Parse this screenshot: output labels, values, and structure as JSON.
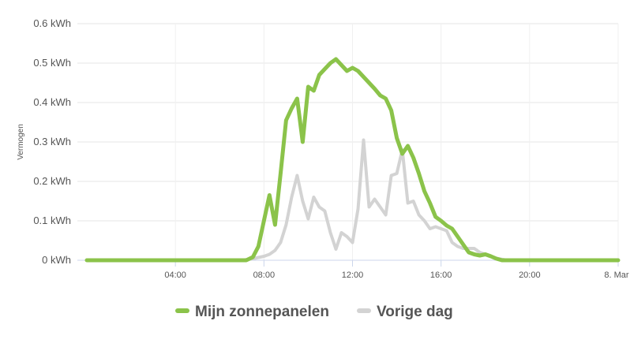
{
  "chart_data": {
    "type": "line",
    "title": "",
    "xlabel": "",
    "ylabel": "Vermogen",
    "unit": "kWh",
    "ylim": [
      0,
      0.6
    ],
    "xlim": [
      0,
      24
    ],
    "y_ticks": [
      {
        "value": 0,
        "label": "0 kWh"
      },
      {
        "value": 0.1,
        "label": "0.1 kWh"
      },
      {
        "value": 0.2,
        "label": "0.2 kWh"
      },
      {
        "value": 0.3,
        "label": "0.3 kWh"
      },
      {
        "value": 0.4,
        "label": "0.4 kWh"
      },
      {
        "value": 0.5,
        "label": "0.5 kWh"
      },
      {
        "value": 0.6,
        "label": "0.6 kWh"
      }
    ],
    "x_ticks": [
      {
        "value": 4,
        "label": "04:00"
      },
      {
        "value": 8,
        "label": "08:00"
      },
      {
        "value": 12,
        "label": "12:00"
      },
      {
        "value": 16,
        "label": "16:00"
      },
      {
        "value": 20,
        "label": "20:00"
      },
      {
        "value": 24,
        "label": "8. Mar"
      }
    ],
    "grid": true,
    "legend_position": "bottom-center",
    "series": [
      {
        "name": "Vorige dag",
        "color": "#d3d3d3",
        "points": [
          [
            0,
            0
          ],
          [
            7,
            0
          ],
          [
            7.5,
            0.004
          ],
          [
            8,
            0.01
          ],
          [
            8.25,
            0.015
          ],
          [
            8.5,
            0.025
          ],
          [
            8.75,
            0.045
          ],
          [
            9,
            0.09
          ],
          [
            9.25,
            0.16
          ],
          [
            9.5,
            0.215
          ],
          [
            9.75,
            0.15
          ],
          [
            10,
            0.105
          ],
          [
            10.25,
            0.16
          ],
          [
            10.5,
            0.135
          ],
          [
            10.75,
            0.125
          ],
          [
            11,
            0.07
          ],
          [
            11.25,
            0.028
          ],
          [
            11.5,
            0.07
          ],
          [
            11.75,
            0.06
          ],
          [
            12,
            0.045
          ],
          [
            12.25,
            0.13
          ],
          [
            12.5,
            0.305
          ],
          [
            12.75,
            0.135
          ],
          [
            13,
            0.155
          ],
          [
            13.25,
            0.135
          ],
          [
            13.5,
            0.115
          ],
          [
            13.75,
            0.215
          ],
          [
            14,
            0.22
          ],
          [
            14.25,
            0.28
          ],
          [
            14.5,
            0.145
          ],
          [
            14.75,
            0.15
          ],
          [
            15,
            0.115
          ],
          [
            15.25,
            0.1
          ],
          [
            15.5,
            0.08
          ],
          [
            15.75,
            0.085
          ],
          [
            16,
            0.08
          ],
          [
            16.25,
            0.075
          ],
          [
            16.5,
            0.045
          ],
          [
            16.75,
            0.035
          ],
          [
            17,
            0.03
          ],
          [
            17.5,
            0.03
          ],
          [
            17.75,
            0.02
          ],
          [
            18,
            0.015
          ],
          [
            18.25,
            0.01
          ],
          [
            18.5,
            0.005
          ],
          [
            19,
            0
          ],
          [
            24,
            0
          ]
        ]
      },
      {
        "name": "Mijn zonnepanelen",
        "color": "#8bc34a",
        "points": [
          [
            0,
            0
          ],
          [
            7.2,
            0
          ],
          [
            7.5,
            0.008
          ],
          [
            7.75,
            0.035
          ],
          [
            8,
            0.1
          ],
          [
            8.25,
            0.165
          ],
          [
            8.5,
            0.09
          ],
          [
            8.75,
            0.22
          ],
          [
            9,
            0.355
          ],
          [
            9.25,
            0.385
          ],
          [
            9.5,
            0.41
          ],
          [
            9.75,
            0.3
          ],
          [
            10,
            0.44
          ],
          [
            10.25,
            0.43
          ],
          [
            10.5,
            0.47
          ],
          [
            10.75,
            0.485
          ],
          [
            11,
            0.5
          ],
          [
            11.25,
            0.51
          ],
          [
            11.5,
            0.495
          ],
          [
            11.75,
            0.48
          ],
          [
            12,
            0.488
          ],
          [
            12.25,
            0.48
          ],
          [
            12.5,
            0.465
          ],
          [
            12.75,
            0.45
          ],
          [
            13,
            0.435
          ],
          [
            13.25,
            0.418
          ],
          [
            13.5,
            0.41
          ],
          [
            13.75,
            0.38
          ],
          [
            14,
            0.31
          ],
          [
            14.25,
            0.27
          ],
          [
            14.5,
            0.29
          ],
          [
            14.75,
            0.26
          ],
          [
            15,
            0.22
          ],
          [
            15.25,
            0.175
          ],
          [
            15.5,
            0.145
          ],
          [
            15.75,
            0.11
          ],
          [
            16,
            0.1
          ],
          [
            16.25,
            0.088
          ],
          [
            16.5,
            0.08
          ],
          [
            16.75,
            0.06
          ],
          [
            17,
            0.04
          ],
          [
            17.25,
            0.02
          ],
          [
            17.5,
            0.015
          ],
          [
            17.75,
            0.012
          ],
          [
            18,
            0.015
          ],
          [
            18.25,
            0.01
          ],
          [
            18.5,
            0.004
          ],
          [
            18.75,
            0
          ],
          [
            24,
            0
          ]
        ]
      }
    ],
    "legend": [
      {
        "name": "Mijn zonnepanelen",
        "color": "#8bc34a"
      },
      {
        "name": "Vorige dag",
        "color": "#d3d3d3"
      }
    ]
  }
}
